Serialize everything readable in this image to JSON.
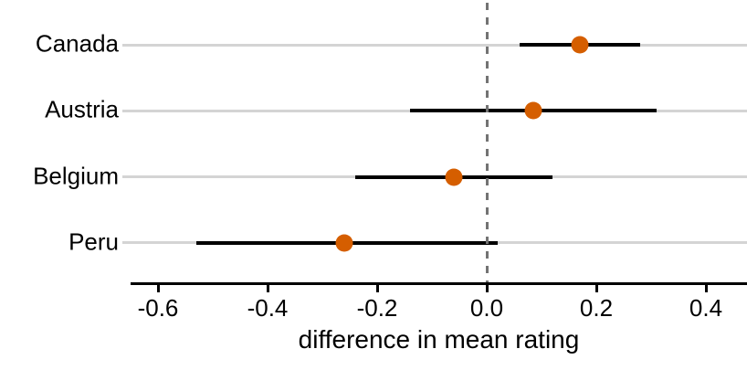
{
  "chart_data": {
    "type": "scatter",
    "subtype": "dot-with-confidence-interval (error bars)",
    "title": "",
    "xlabel": "difference in mean rating",
    "ylabel": "",
    "categories": [
      "Canada",
      "Austria",
      "Belgium",
      "Peru"
    ],
    "series": [
      {
        "name": "difference in mean rating",
        "values": [
          0.17,
          0.085,
          -0.06,
          -0.26
        ],
        "ci_low": [
          0.06,
          -0.14,
          -0.24,
          -0.53
        ],
        "ci_high": [
          0.28,
          0.31,
          0.12,
          0.02
        ]
      }
    ],
    "x_ticks": [
      -0.6,
      -0.4,
      -0.2,
      0.0,
      0.2,
      0.4
    ],
    "x_tick_labels": [
      "-0.6",
      "-0.4",
      "-0.2",
      "0.0",
      "0.2",
      "0.4"
    ],
    "xlim": [
      -0.65,
      0.475
    ],
    "reference_line_x": 0.0,
    "grid": "horizontal light-gray line per category row",
    "legend": "none",
    "colors": {
      "point": "#D55E00",
      "interval_line": "#000000",
      "grid_line": "#D4D4D4",
      "reference_line": "#737373",
      "axis_line": "#000000",
      "text": "#000000",
      "background": "#FFFFFF"
    }
  }
}
